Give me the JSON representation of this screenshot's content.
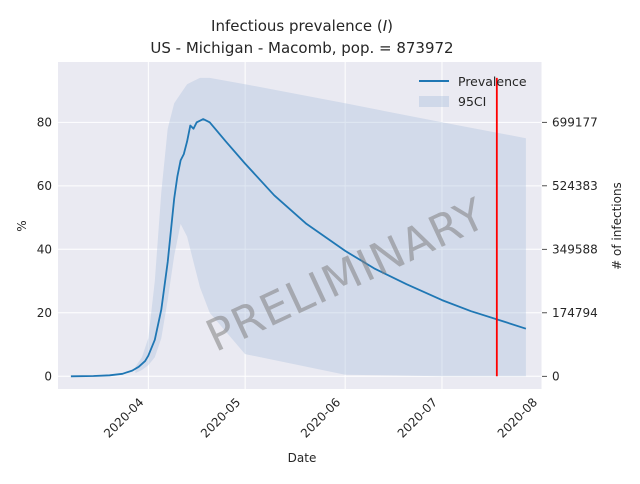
{
  "chart_data": {
    "type": "line",
    "title_line1": "Infectious prevalence (",
    "title_var": "I",
    "title_close": ")",
    "title_line2": "US - Michigan - Macomb, pop. = 873972",
    "xlabel": "Date",
    "ylabel": "%",
    "ylabel_right": "# of infections",
    "watermark": "PRELIMINARY",
    "x_ticks": [
      "2020-04",
      "2020-05",
      "2020-06",
      "2020-07",
      "2020-08"
    ],
    "y_ticks": [
      0,
      20,
      40,
      60,
      80
    ],
    "y_right_ticks": [
      "0",
      "174794",
      "349588",
      "524383",
      "699177"
    ],
    "ylim": [
      -4,
      99
    ],
    "xlim": [
      "2020-03-04",
      "2020-08-01"
    ],
    "grid": true,
    "legend_position": "top-right",
    "legend": [
      {
        "label": "Prevalence",
        "type": "line",
        "color": "#1f77b4"
      },
      {
        "label": "95CI",
        "type": "patch",
        "color": "#b0c4de"
      }
    ],
    "series": [
      {
        "name": "Prevalence",
        "color": "#1f77b4",
        "x": [
          "2020-03-08",
          "2020-03-15",
          "2020-03-20",
          "2020-03-24",
          "2020-03-27",
          "2020-03-29",
          "2020-03-31",
          "2020-04-01",
          "2020-04-03",
          "2020-04-05",
          "2020-04-07",
          "2020-04-09",
          "2020-04-10",
          "2020-04-11",
          "2020-04-12",
          "2020-04-13",
          "2020-04-14",
          "2020-04-15",
          "2020-04-16",
          "2020-04-17",
          "2020-04-18",
          "2020-04-20",
          "2020-04-25",
          "2020-05-01",
          "2020-05-10",
          "2020-05-20",
          "2020-06-01",
          "2020-06-10",
          "2020-06-20",
          "2020-07-01",
          "2020-07-10",
          "2020-07-20",
          "2020-07-27"
        ],
        "values": [
          0,
          0.1,
          0.3,
          0.8,
          1.8,
          3,
          4.8,
          6.5,
          11.5,
          21,
          36,
          56,
          63,
          68,
          70,
          74,
          79,
          78,
          80,
          80.5,
          81,
          80,
          74,
          67,
          57,
          48,
          39.5,
          34,
          29,
          24,
          20.5,
          17.3,
          15
        ]
      }
    ],
    "ci_band": {
      "name": "95CI",
      "color": "#b0c4de",
      "x": [
        "2020-03-28",
        "2020-03-30",
        "2020-04-01",
        "2020-04-03",
        "2020-04-05",
        "2020-04-07",
        "2020-04-09",
        "2020-04-11",
        "2020-04-13",
        "2020-04-15",
        "2020-04-17",
        "2020-04-20",
        "2020-05-01",
        "2020-06-01",
        "2020-07-01",
        "2020-07-27"
      ],
      "upper": [
        3,
        6,
        12,
        30,
        58,
        78,
        86,
        89,
        92,
        93,
        94,
        94,
        92,
        86,
        80,
        75
      ],
      "lower": [
        1,
        2,
        3.5,
        6,
        12,
        24,
        38,
        48,
        44,
        36,
        28,
        20,
        7,
        0.5,
        0,
        0
      ]
    },
    "vertical_line": {
      "x": "2020-07-18",
      "y_range": [
        0,
        94
      ],
      "color": "#ff0000"
    }
  }
}
